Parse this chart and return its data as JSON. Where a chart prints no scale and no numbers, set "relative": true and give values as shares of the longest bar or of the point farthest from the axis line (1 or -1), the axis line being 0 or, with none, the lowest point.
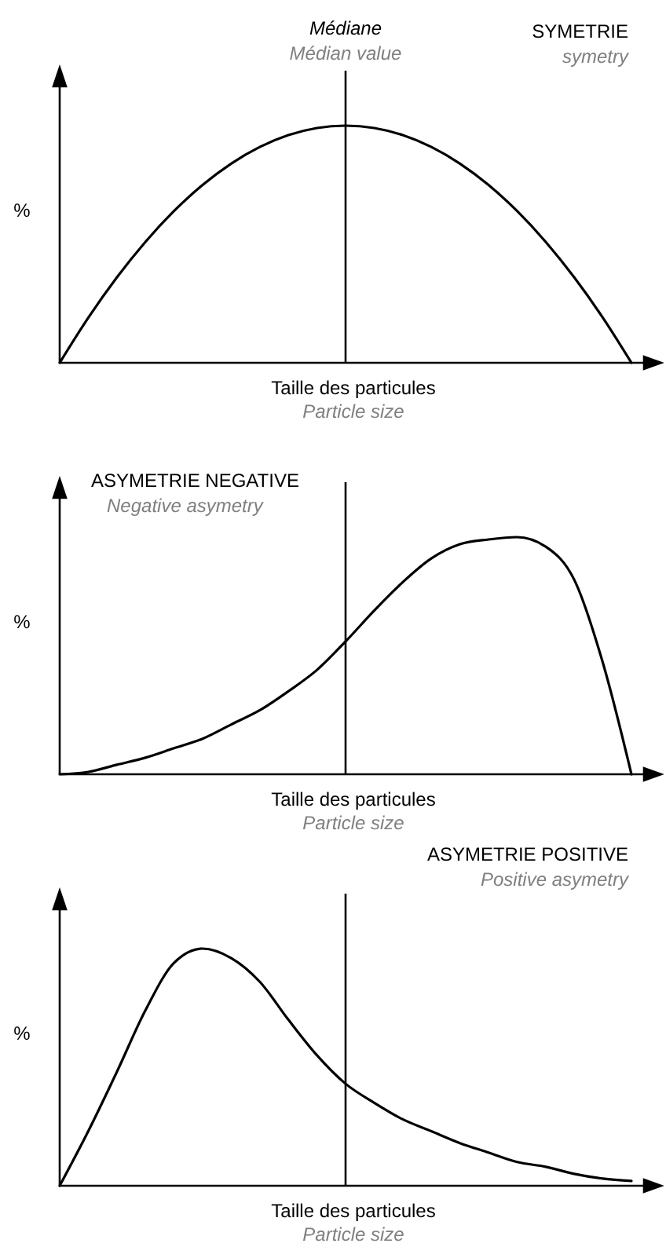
{
  "chart_data": [
    {
      "type": "line",
      "relative": true,
      "title": "SYMETRIE",
      "subtitle": "symetry",
      "xlabel": "Taille des particules",
      "ylabel": "%",
      "annotations": [
        "Particle size",
        "Médiane",
        "Médian value"
      ],
      "categories": [
        null,
        null,
        null,
        null,
        null,
        null,
        null,
        null,
        null,
        null,
        null,
        null,
        null,
        null,
        null,
        null,
        null,
        null,
        null,
        null,
        null
      ],
      "series": [
        {
          "color": "#000000",
          "values": [
            0,
            0.19,
            0.36,
            0.51,
            0.64,
            0.75,
            0.84,
            0.91,
            0.96,
            0.99,
            1,
            0.99,
            0.96,
            0.91,
            0.84,
            0.75,
            0.64,
            0.51,
            0.36,
            0.19,
            0
          ]
        }
      ]
    },
    {
      "type": "line",
      "relative": true,
      "title": "ASYMETRIE NEGATIVE",
      "subtitle": "Negative asymetry",
      "xlabel": "Taille des particules",
      "ylabel": "%",
      "annotations": [
        "Particle size"
      ],
      "categories": [
        null,
        null,
        null,
        null,
        null,
        null,
        null,
        null,
        null,
        null,
        null,
        null,
        null,
        null,
        null,
        null,
        null,
        null,
        null,
        null,
        null
      ],
      "series": [
        {
          "color": "#000000",
          "values": [
            0,
            0.01,
            0.04,
            0.07,
            0.11,
            0.15,
            0.21,
            0.27,
            0.35,
            0.44,
            0.56,
            0.69,
            0.81,
            0.91,
            0.97,
            0.99,
            1,
            0.96,
            0.82,
            0.47,
            0
          ]
        }
      ]
    },
    {
      "type": "line",
      "relative": true,
      "title": "ASYMETRIE POSITIVE",
      "subtitle": "Positive asymetry",
      "xlabel": "Taille des particules",
      "ylabel": "%",
      "annotations": [
        "Particle size"
      ],
      "categories": [
        null,
        null,
        null,
        null,
        null,
        null,
        null,
        null,
        null,
        null,
        null,
        null,
        null,
        null,
        null,
        null,
        null,
        null,
        null,
        null,
        null
      ],
      "series": [
        {
          "color": "#000000",
          "values": [
            0,
            0.23,
            0.48,
            0.74,
            0.94,
            1,
            0.96,
            0.86,
            0.7,
            0.55,
            0.43,
            0.35,
            0.28,
            0.23,
            0.18,
            0.14,
            0.1,
            0.08,
            0.05,
            0.03,
            0.02
          ]
        }
      ]
    }
  ]
}
